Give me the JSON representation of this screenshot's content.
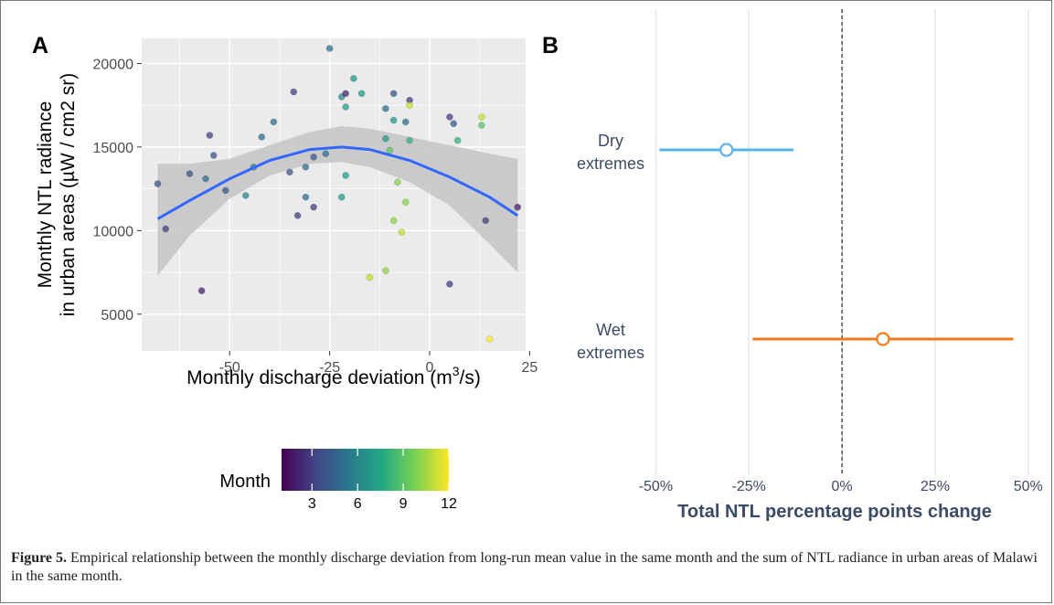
{
  "figure": {
    "caption_label": "Figure 5.",
    "caption_text": " Empirical relationship between the monthly discharge deviation from long-run mean value in the same month and the sum of NTL radiance in urban areas of Malawi in the same month."
  },
  "colors": {
    "panel_bg": "#ebebeb",
    "grid": "#ffffff",
    "fit_line": "#3366ff",
    "ribbon": "#c4c4c4",
    "dry": "#56b4e9",
    "wet": "#f07b1a",
    "label_text": "#3b4a66"
  },
  "chart_data": [
    {
      "type": "scatter",
      "panel_letter": "A",
      "xlabel_main": "Monthly discharge deviation (m",
      "xlabel_sup": "3",
      "xlabel_tail": "/s)",
      "ylabel_line1": "Monthly NTL radiance",
      "ylabel_line2": "in urban areas (µW / cm2 sr)",
      "xlim": [
        -72,
        24
      ],
      "ylim": [
        2800,
        21500
      ],
      "x_ticks": [
        -50,
        -25,
        0,
        25
      ],
      "x_tick_labels": [
        "-50",
        "-25",
        "0",
        "25"
      ],
      "y_ticks": [
        5000,
        10000,
        15000,
        20000
      ],
      "y_tick_labels": [
        "5000",
        "10000",
        "15000",
        "20000"
      ],
      "legend": {
        "title": "Month",
        "ticks": [
          3,
          6,
          9,
          12
        ],
        "tick_labels": [
          "3",
          "6",
          "9",
          "12"
        ],
        "range": [
          1,
          12
        ]
      },
      "points": [
        {
          "x": -68,
          "y": 12800,
          "month": 4
        },
        {
          "x": -66,
          "y": 10100,
          "month": 3
        },
        {
          "x": -60,
          "y": 13400,
          "month": 4
        },
        {
          "x": -57,
          "y": 6400,
          "month": 2
        },
        {
          "x": -56,
          "y": 13100,
          "month": 5
        },
        {
          "x": -55,
          "y": 15700,
          "month": 3
        },
        {
          "x": -54,
          "y": 14500,
          "month": 4
        },
        {
          "x": -51,
          "y": 12400,
          "month": 4
        },
        {
          "x": -46,
          "y": 12100,
          "month": 6
        },
        {
          "x": -44,
          "y": 13800,
          "month": 6
        },
        {
          "x": -42,
          "y": 15600,
          "month": 5
        },
        {
          "x": -39,
          "y": 16500,
          "month": 5
        },
        {
          "x": -35,
          "y": 13500,
          "month": 4
        },
        {
          "x": -34,
          "y": 18300,
          "month": 3
        },
        {
          "x": -33,
          "y": 10900,
          "month": 3
        },
        {
          "x": -31,
          "y": 13800,
          "month": 5
        },
        {
          "x": -31,
          "y": 12000,
          "month": 5
        },
        {
          "x": -29,
          "y": 14400,
          "month": 4
        },
        {
          "x": -29,
          "y": 11400,
          "month": 3
        },
        {
          "x": -26,
          "y": 14600,
          "month": 5
        },
        {
          "x": -25,
          "y": 20900,
          "month": 5
        },
        {
          "x": -22,
          "y": 18000,
          "month": 6
        },
        {
          "x": -21,
          "y": 18200,
          "month": 2
        },
        {
          "x": -21,
          "y": 17400,
          "month": 7
        },
        {
          "x": -21,
          "y": 13300,
          "month": 7
        },
        {
          "x": -22,
          "y": 12000,
          "month": 7
        },
        {
          "x": -19,
          "y": 19100,
          "month": 7
        },
        {
          "x": -17,
          "y": 18200,
          "month": 7
        },
        {
          "x": -15,
          "y": 7200,
          "month": 11
        },
        {
          "x": -11,
          "y": 17300,
          "month": 5
        },
        {
          "x": -11,
          "y": 15500,
          "month": 7
        },
        {
          "x": -11,
          "y": 7600,
          "month": 10
        },
        {
          "x": -10,
          "y": 14800,
          "month": 9
        },
        {
          "x": -9,
          "y": 18200,
          "month": 4
        },
        {
          "x": -9,
          "y": 16600,
          "month": 7
        },
        {
          "x": -9,
          "y": 10600,
          "month": 10
        },
        {
          "x": -8,
          "y": 12900,
          "month": 10
        },
        {
          "x": -7,
          "y": 9900,
          "month": 11
        },
        {
          "x": -6,
          "y": 16500,
          "month": 5
        },
        {
          "x": -6,
          "y": 11700,
          "month": 10
        },
        {
          "x": -5,
          "y": 17800,
          "month": 3
        },
        {
          "x": -5,
          "y": 17500,
          "month": 11
        },
        {
          "x": -5,
          "y": 15400,
          "month": 8
        },
        {
          "x": 5,
          "y": 16800,
          "month": 3
        },
        {
          "x": 5,
          "y": 6800,
          "month": 3
        },
        {
          "x": 6,
          "y": 16400,
          "month": 4
        },
        {
          "x": 7,
          "y": 15400,
          "month": 8
        },
        {
          "x": 13,
          "y": 16800,
          "month": 11
        },
        {
          "x": 13,
          "y": 16300,
          "month": 9
        },
        {
          "x": 14,
          "y": 10600,
          "month": 3
        },
        {
          "x": 15,
          "y": 3500,
          "month": 12
        },
        {
          "x": 22,
          "y": 11400,
          "month": 2
        }
      ],
      "fit": {
        "x": [
          -68,
          -60,
          -50,
          -40,
          -30,
          -22,
          -15,
          -5,
          5,
          15,
          22
        ],
        "y": [
          10700,
          11800,
          13100,
          14200,
          14850,
          15000,
          14850,
          14200,
          13200,
          12000,
          10900
        ],
        "lower": [
          7300,
          9700,
          11900,
          13300,
          14000,
          14100,
          13800,
          12900,
          11500,
          9200,
          7500
        ],
        "upper": [
          14000,
          14000,
          14300,
          15100,
          15900,
          16250,
          16100,
          15600,
          15100,
          14600,
          14300
        ]
      }
    },
    {
      "type": "scatter",
      "panel_letter": "B",
      "xlabel": "Total NTL percentage points change",
      "xlim": [
        -55,
        53
      ],
      "x_ticks": [
        -50,
        -25,
        0,
        25,
        50
      ],
      "x_tick_labels": [
        "-50%",
        "-25%",
        "0%",
        "25%",
        "50%"
      ],
      "ref_line": 0,
      "rows": [
        {
          "label_line1": "Dry",
          "label_line2": "extremes",
          "estimate": -31,
          "lower": -49,
          "upper": -13,
          "color": "#56b4e9"
        },
        {
          "label_line1": "Wet",
          "label_line2": "extremes",
          "estimate": 11,
          "lower": -24,
          "upper": 46,
          "color": "#f07b1a"
        }
      ]
    }
  ]
}
